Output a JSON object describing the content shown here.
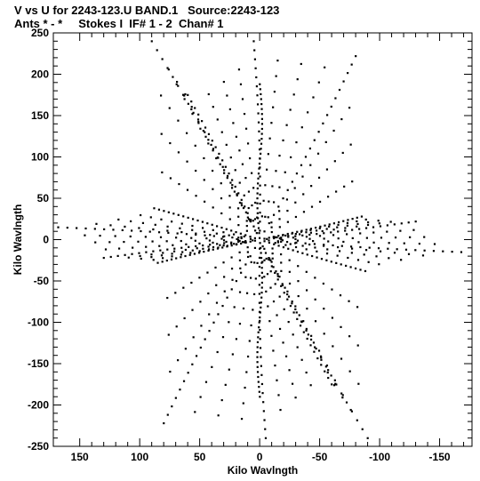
{
  "chart_data": {
    "type": "scatter",
    "title": "V vs U for 2243-123.U BAND.1   Source:2243-123",
    "subtitle": "Ants * - *     Stokes I  IF# 1 - 2  Chan# 1",
    "xlabel": "Kilo Wavlngth",
    "ylabel": "Kilo Wavlngth",
    "xlim": [
      172,
      -177
    ],
    "ylim": [
      -250,
      250
    ],
    "x_ticks": [
      150,
      100,
      50,
      0,
      -50,
      -100,
      -150
    ],
    "y_ticks": [
      250,
      200,
      150,
      100,
      50,
      0,
      -50,
      -100,
      -150,
      -200,
      -250
    ],
    "x_tick_labels": [
      "150",
      "100",
      "50",
      "0",
      "-50",
      "-100",
      "-150"
    ],
    "y_tick_labels": [
      "250",
      "200",
      "150",
      "100",
      "50",
      "0",
      "-50",
      "-100",
      "-150",
      "-200",
      "-250"
    ],
    "grid": false,
    "marker": "dot",
    "marker_color": "#000000",
    "description_of_pattern": "uv-coverage: point-symmetric radial tracks forming a six-armed star (vertical arms to +/-240, near-horizontal arms to u about +/-170)",
    "arms": [
      {
        "u": 5,
        "v": 240
      },
      {
        "u": -5,
        "v": -240
      },
      {
        "u": 90,
        "v": 240
      },
      {
        "u": -90,
        "v": -240
      },
      {
        "u": -80,
        "v": 222
      },
      {
        "u": 80,
        "v": -222
      },
      {
        "u": 168,
        "v": 15
      },
      {
        "u": -168,
        "v": -15
      },
      {
        "u": 130,
        "v": -22
      },
      {
        "u": -130,
        "v": 22
      },
      {
        "u": 88,
        "v": 38
      },
      {
        "u": -88,
        "v": -38
      },
      {
        "u": -85,
        "v": 28
      },
      {
        "u": 85,
        "v": -28
      },
      {
        "u": 60,
        "v": 175
      },
      {
        "u": -60,
        "v": -175
      }
    ]
  }
}
